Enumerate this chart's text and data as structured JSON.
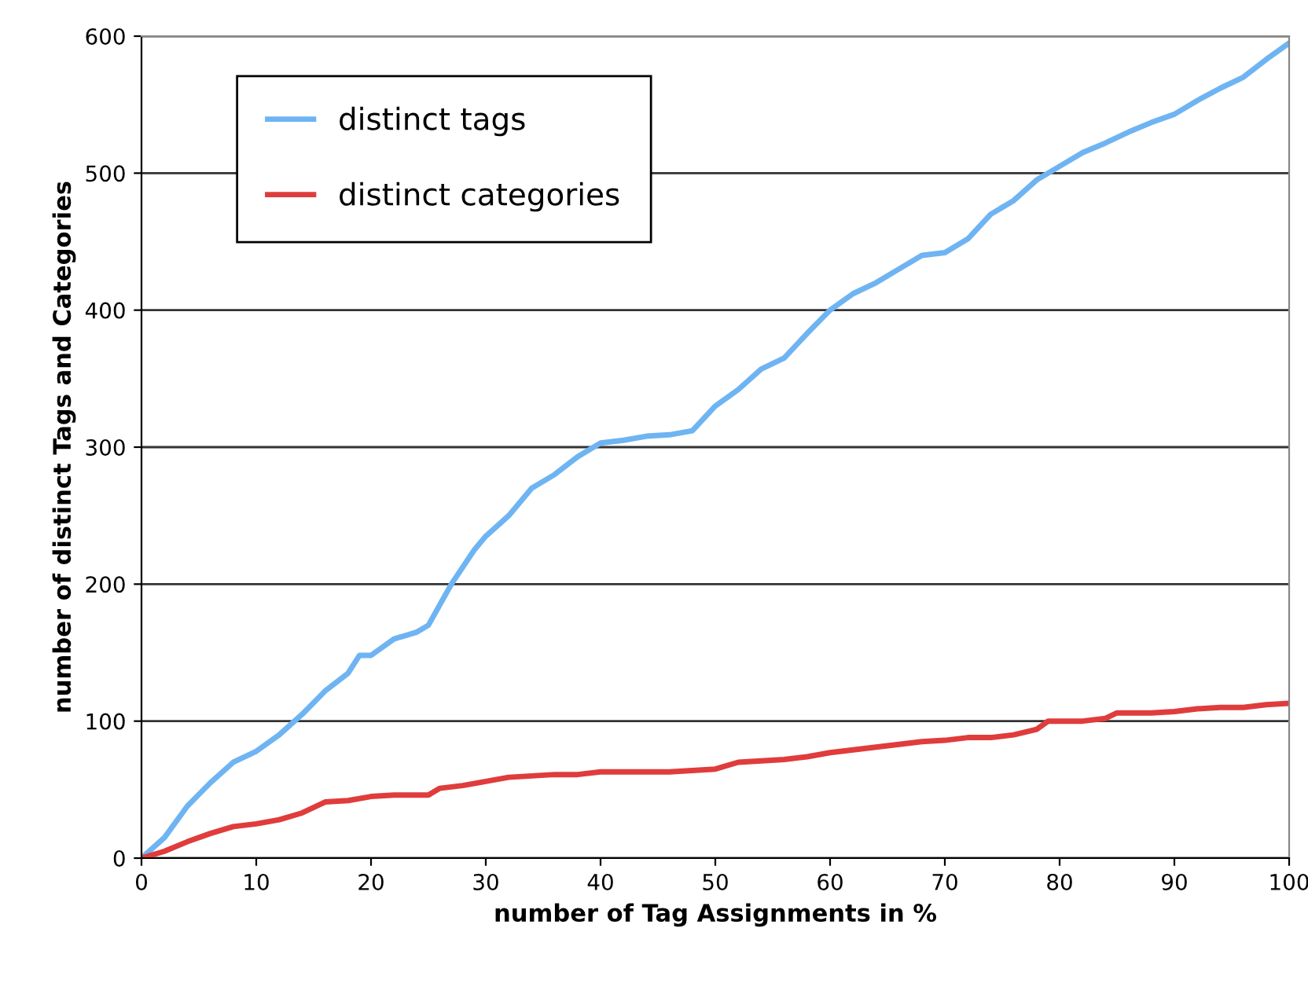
{
  "chart_data": {
    "type": "line",
    "xlabel": "number of Tag Assignments in %",
    "ylabel": "number of distinct Tags and Categories",
    "xlim": [
      0,
      100
    ],
    "xticks": [
      0,
      10,
      20,
      30,
      40,
      50,
      60,
      70,
      80,
      90,
      100
    ],
    "ylim": [
      0,
      600
    ],
    "yticks": [
      0,
      100,
      200,
      300,
      400,
      500,
      600
    ],
    "grid": "y",
    "legend": "top left",
    "marker": "none",
    "line_style": "solid",
    "series": [
      {
        "name": "distinct tags",
        "color": "#6fb4f2",
        "x": [
          0,
          2,
          4,
          6,
          8,
          10,
          12,
          14,
          16,
          18,
          19,
          20,
          22,
          24,
          25,
          27,
          29,
          30,
          32,
          34,
          36,
          38,
          40,
          42,
          44,
          46,
          48,
          50,
          52,
          54,
          56,
          58,
          60,
          62,
          64,
          66,
          68,
          70,
          72,
          74,
          76,
          78,
          80,
          82,
          84,
          86,
          88,
          90,
          92,
          94,
          96,
          98,
          100
        ],
        "values": [
          0,
          15,
          38,
          55,
          70,
          78,
          90,
          105,
          122,
          135,
          148,
          148,
          160,
          165,
          170,
          200,
          225,
          235,
          250,
          270,
          280,
          293,
          303,
          305,
          308,
          309,
          312,
          330,
          342,
          357,
          365,
          383,
          400,
          412,
          420,
          430,
          440,
          442,
          452,
          470,
          480,
          495,
          505,
          515,
          522,
          530,
          537,
          543,
          553,
          562,
          570,
          583,
          595
        ]
      },
      {
        "name": "distinct categories",
        "color": "#e03c3c",
        "x": [
          0,
          2,
          4,
          6,
          8,
          10,
          12,
          14,
          16,
          18,
          20,
          22,
          24,
          25,
          26,
          28,
          30,
          32,
          34,
          36,
          38,
          40,
          42,
          44,
          46,
          48,
          50,
          52,
          54,
          56,
          58,
          60,
          62,
          64,
          66,
          68,
          70,
          72,
          74,
          76,
          78,
          79,
          80,
          82,
          84,
          85,
          86,
          88,
          90,
          92,
          94,
          96,
          98,
          100
        ],
        "values": [
          0,
          5,
          12,
          18,
          23,
          25,
          28,
          33,
          41,
          42,
          45,
          46,
          46,
          46,
          51,
          53,
          56,
          59,
          60,
          61,
          61,
          63,
          63,
          63,
          63,
          64,
          65,
          70,
          71,
          72,
          74,
          77,
          79,
          81,
          83,
          85,
          86,
          88,
          88,
          90,
          94,
          100,
          100,
          100,
          102,
          106,
          106,
          106,
          107,
          109,
          110,
          110,
          112,
          113
        ]
      }
    ]
  }
}
